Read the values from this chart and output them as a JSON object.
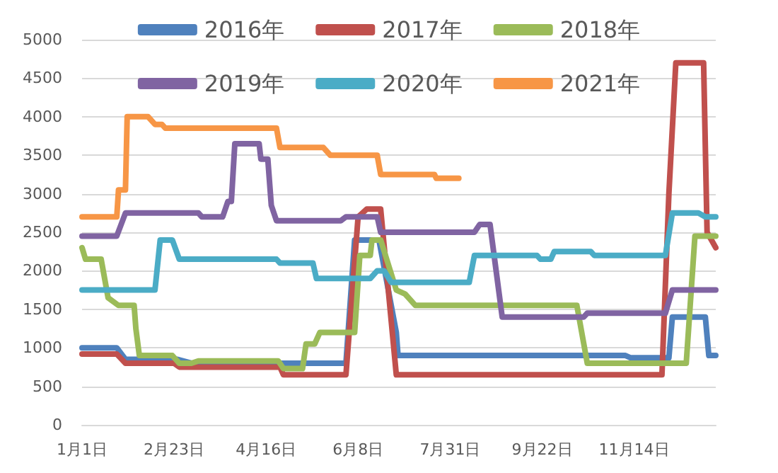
{
  "chart_data": {
    "type": "line",
    "xlim": [
      "--01-01",
      "--12-31"
    ],
    "xticks": [
      {
        "value": "--01-01",
        "label": "1月1日"
      },
      {
        "value": "--02-23",
        "label": "2月23日"
      },
      {
        "value": "--04-16",
        "label": "4月16日"
      },
      {
        "value": "--06-08",
        "label": "6月8日"
      },
      {
        "value": "--07-31",
        "label": "7月31日"
      },
      {
        "value": "--09-22",
        "label": "9月22日"
      },
      {
        "value": "--11-14",
        "label": "11月14日"
      }
    ],
    "ylim": [
      0,
      5000
    ],
    "yticks": [
      0,
      500,
      1000,
      1500,
      2000,
      2500,
      3000,
      3500,
      4000,
      4500,
      5000
    ],
    "grid": "y",
    "legend": "top",
    "line_style": "solid",
    "series": [
      {
        "name": "2016年",
        "color": "#4f81bd",
        "x": [
          "--01-01",
          "--01-21",
          "--01-26",
          "--02-25",
          "--03-04",
          "--06-01",
          "--06-06",
          "--06-20",
          "--06-30",
          "--07-01",
          "--11-09",
          "--11-12",
          "--12-04",
          "--12-06",
          "--12-25",
          "--12-27",
          "--12-31"
        ],
        "values": [
          1000,
          1000,
          850,
          850,
          800,
          800,
          2400,
          2400,
          1200,
          900,
          900,
          870,
          870,
          1400,
          1400,
          900,
          900
        ]
      },
      {
        "name": "2017年",
        "color": "#c0504d",
        "x": [
          "--01-01",
          "--01-21",
          "--01-26",
          "--02-23",
          "--02-26",
          "--04-24",
          "--04-26",
          "--06-01",
          "--06-08",
          "--06-13",
          "--06-21",
          "--06-30",
          "--11-30",
          "--12-04",
          "--12-08",
          "--12-24",
          "--12-26",
          "--12-31"
        ],
        "values": [
          920,
          920,
          800,
          800,
          750,
          750,
          650,
          650,
          2700,
          2800,
          2800,
          650,
          650,
          3000,
          4700,
          4700,
          2500,
          2300
        ]
      },
      {
        "name": "2018年",
        "color": "#9bbb59",
        "x": [
          "--01-01",
          "--01-03",
          "--01-12",
          "--01-16",
          "--01-22",
          "--01-31",
          "--02-01",
          "--02-03",
          "--02-22",
          "--02-26",
          "--03-04",
          "--03-08",
          "--04-23",
          "--04-26",
          "--05-07",
          "--05-09",
          "--05-14",
          "--05-17",
          "--06-06",
          "--06-09",
          "--06-15",
          "--06-16",
          "--06-21",
          "--06-30",
          "--07-05",
          "--07-11",
          "--10-12",
          "--10-18",
          "--12-14",
          "--12-19",
          "--12-31"
        ],
        "values": [
          2300,
          2150,
          2150,
          1650,
          1550,
          1550,
          1250,
          900,
          900,
          800,
          800,
          830,
          830,
          730,
          730,
          1050,
          1050,
          1200,
          1200,
          2200,
          2200,
          2400,
          2400,
          1750,
          1700,
          1550,
          1550,
          800,
          800,
          2450,
          2450
        ]
      },
      {
        "name": "2019年",
        "color": "#8064a2",
        "x": [
          "--01-01",
          "--01-21",
          "--01-26",
          "--03-08",
          "--03-10",
          "--03-22",
          "--03-25",
          "--03-27",
          "--03-29",
          "--04-12",
          "--04-13",
          "--04-17",
          "--04-19",
          "--04-22",
          "--05-29",
          "--06-01",
          "--06-19",
          "--06-21",
          "--08-14",
          "--08-17",
          "--08-23",
          "--08-30",
          "--10-16",
          "--10-18",
          "--12-02",
          "--12-06",
          "--12-31"
        ],
        "values": [
          2450,
          2450,
          2750,
          2750,
          2700,
          2700,
          2900,
          2900,
          3650,
          3650,
          3450,
          3450,
          2850,
          2650,
          2650,
          2700,
          2700,
          2500,
          2500,
          2600,
          2600,
          1400,
          1400,
          1450,
          1450,
          1750,
          1750
        ]
      },
      {
        "name": "2020年",
        "color": "#4bacc6",
        "x": [
          "--01-01",
          "--02-12",
          "--02-15",
          "--02-22",
          "--02-26",
          "--04-22",
          "--04-24",
          "--05-13",
          "--05-15",
          "--06-15",
          "--06-19",
          "--06-23",
          "--06-27",
          "--08-11",
          "--08-14",
          "--09-19",
          "--09-21",
          "--09-27",
          "--09-29",
          "--10-20",
          "--10-22",
          "--12-02",
          "--12-06",
          "--12-21",
          "--12-25",
          "--12-31"
        ],
        "values": [
          1750,
          1750,
          2400,
          2400,
          2150,
          2150,
          2100,
          2100,
          1900,
          1900,
          2000,
          2000,
          1850,
          1850,
          2200,
          2200,
          2150,
          2150,
          2250,
          2250,
          2200,
          2200,
          2750,
          2750,
          2700,
          2700
        ]
      },
      {
        "name": "2021年",
        "color": "#f79646",
        "x": [
          "--01-01",
          "--01-21",
          "--01-22",
          "--01-26",
          "--01-27",
          "--02-08",
          "--02-12",
          "--02-16",
          "--02-18",
          "--04-22",
          "--04-24",
          "--05-19",
          "--05-23",
          "--06-19",
          "--06-21",
          "--07-22",
          "--07-23",
          "--08-05"
        ],
        "values": [
          2700,
          2700,
          3050,
          3050,
          4000,
          4000,
          3900,
          3900,
          3850,
          3850,
          3600,
          3600,
          3500,
          3500,
          3250,
          3250,
          3200,
          3200
        ]
      }
    ]
  }
}
